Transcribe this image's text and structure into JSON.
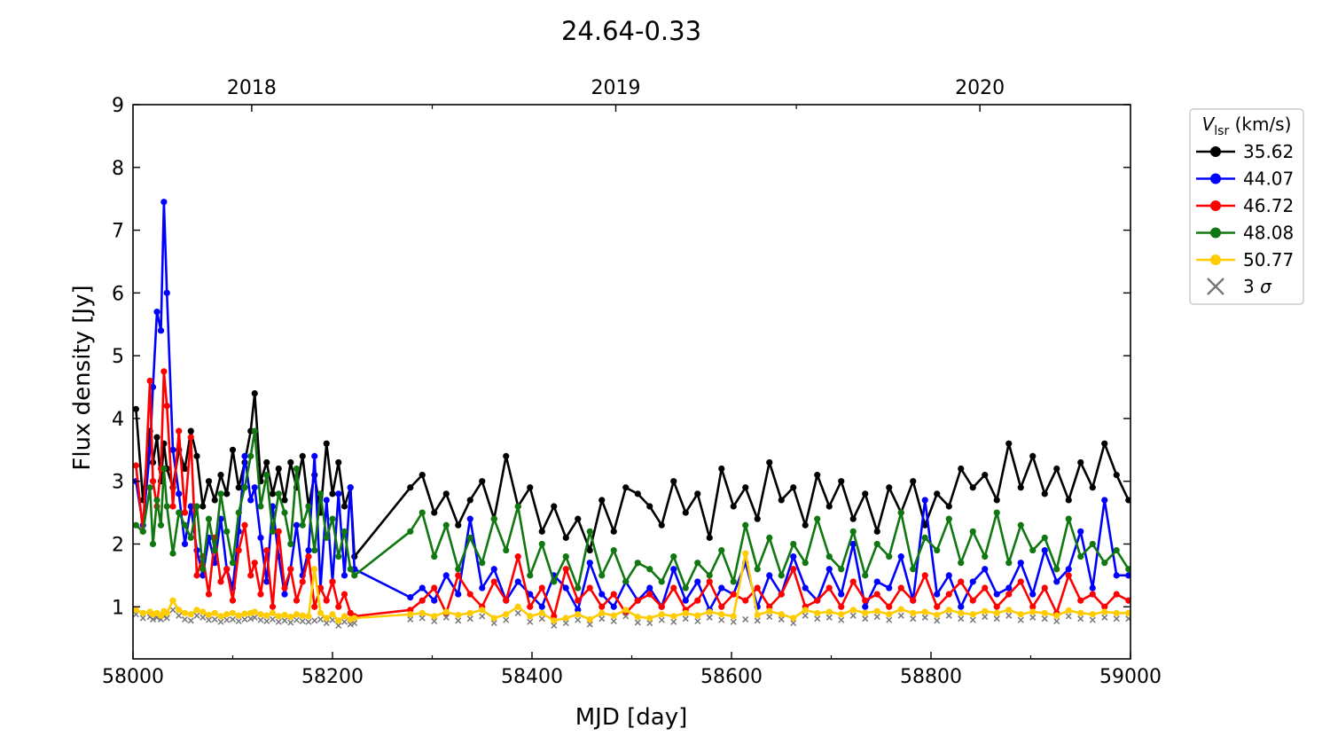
{
  "chart_data": {
    "type": "line",
    "title": "24.64-0.33",
    "xlabel": "MJD [day]",
    "ylabel": "Flux density [Jy]",
    "xlim": [
      58000,
      59000
    ],
    "ylim": [
      0.17,
      9
    ],
    "xticks": [
      58000,
      58200,
      58400,
      58600,
      58800,
      59000
    ],
    "yticks": [
      1,
      2,
      3,
      4,
      5,
      6,
      7,
      8,
      9
    ],
    "top_axis": {
      "ticks": [
        58119,
        58484,
        58849
      ],
      "labels": [
        "2018",
        "2019",
        "2020"
      ],
      "minor": [
        58300,
        58665
      ]
    },
    "grid": false,
    "legend": {
      "title": "V_lsr (km/s)",
      "title_main": "V",
      "title_sub": "lsr",
      "title_rest": " (km/s)",
      "placement": "outside-right-top"
    },
    "x": [
      58003,
      58010,
      58017,
      58020,
      58024,
      58028,
      58031,
      58034,
      58040,
      58046,
      58052,
      58058,
      58064,
      58070,
      58076,
      58082,
      58088,
      58094,
      58100,
      58106,
      58112,
      58118,
      58122,
      58128,
      58134,
      58140,
      58146,
      58152,
      58158,
      58164,
      58170,
      58176,
      58182,
      58188,
      58194,
      58200,
      58206,
      58212,
      58218,
      58222,
      58278,
      58290,
      58302,
      58314,
      58326,
      58338,
      58350,
      58362,
      58374,
      58386,
      58398,
      58410,
      58422,
      58434,
      58446,
      58458,
      58470,
      58482,
      58494,
      58506,
      58518,
      58530,
      58542,
      58554,
      58566,
      58578,
      58590,
      58602,
      58614,
      58626,
      58638,
      58650,
      58662,
      58674,
      58686,
      58698,
      58710,
      58722,
      58734,
      58746,
      58758,
      58770,
      58782,
      58794,
      58806,
      58818,
      58830,
      58842,
      58854,
      58866,
      58878,
      58890,
      58902,
      58914,
      58926,
      58938,
      58950,
      58962,
      58974,
      58986,
      58998
    ],
    "series": [
      {
        "name": "35.62",
        "color": "#000000",
        "values": [
          4.15,
          2.7,
          3.8,
          3.3,
          3.7,
          3.0,
          3.6,
          3.2,
          2.9,
          3.5,
          3.2,
          3.8,
          3.4,
          2.6,
          3.0,
          2.7,
          3.1,
          2.8,
          3.5,
          2.9,
          3.3,
          3.8,
          4.4,
          3.0,
          3.3,
          2.8,
          3.2,
          2.7,
          3.3,
          2.9,
          3.4,
          2.6,
          3.1,
          2.5,
          3.6,
          2.8,
          3.3,
          2.6,
          2.9,
          1.8,
          2.9,
          3.1,
          2.5,
          2.8,
          2.3,
          2.7,
          3.0,
          2.4,
          3.4,
          2.6,
          2.9,
          2.2,
          2.6,
          2.1,
          2.4,
          1.9,
          2.7,
          2.2,
          2.9,
          2.8,
          2.6,
          2.3,
          3.0,
          2.5,
          2.8,
          2.1,
          3.2,
          2.6,
          2.9,
          2.4,
          3.3,
          2.7,
          2.9,
          2.3,
          3.1,
          2.6,
          3.0,
          2.4,
          2.8,
          2.2,
          2.9,
          2.5,
          3.0,
          2.3,
          2.8,
          2.6,
          3.2,
          2.9,
          3.1,
          2.7,
          3.6,
          2.9,
          3.4,
          2.8,
          3.2,
          2.7,
          3.3,
          2.9,
          3.6,
          3.1,
          2.7
        ]
      },
      {
        "name": "44.07",
        "color": "#0000ff",
        "values": [
          3.0,
          2.3,
          3.5,
          4.5,
          5.7,
          5.4,
          7.45,
          6.0,
          3.5,
          2.8,
          2.0,
          2.6,
          1.9,
          1.5,
          2.1,
          1.7,
          2.4,
          1.6,
          1.3,
          2.2,
          3.4,
          2.7,
          2.9,
          2.1,
          1.4,
          2.6,
          1.8,
          1.2,
          1.6,
          2.3,
          1.5,
          1.9,
          3.4,
          1.3,
          2.7,
          1.4,
          2.8,
          1.5,
          2.9,
          1.6,
          1.15,
          1.3,
          1.1,
          1.5,
          1.2,
          2.4,
          1.3,
          1.6,
          1.1,
          1.4,
          1.2,
          1.0,
          1.5,
          1.3,
          0.95,
          1.7,
          1.2,
          1.0,
          1.4,
          1.1,
          1.3,
          1.0,
          1.6,
          1.1,
          1.4,
          0.95,
          1.3,
          1.2,
          1.7,
          1.0,
          1.5,
          1.2,
          1.8,
          1.3,
          1.1,
          1.6,
          1.2,
          2.0,
          1.0,
          1.4,
          1.3,
          1.8,
          1.1,
          2.7,
          1.2,
          1.5,
          1.0,
          1.4,
          1.6,
          1.2,
          1.3,
          1.7,
          1.2,
          1.9,
          1.4,
          1.6,
          2.2,
          1.3,
          2.7,
          1.5,
          1.5
        ]
      },
      {
        "name": "46.72",
        "color": "#ff0000",
        "values": [
          3.25,
          2.2,
          4.6,
          3.0,
          2.6,
          3.2,
          4.75,
          4.2,
          2.6,
          3.8,
          2.5,
          3.7,
          1.5,
          1.8,
          1.2,
          2.1,
          1.4,
          1.6,
          1.1,
          1.9,
          2.3,
          1.5,
          1.7,
          1.2,
          1.9,
          1.0,
          2.2,
          1.3,
          1.6,
          1.1,
          1.4,
          1.8,
          1.0,
          1.3,
          1.1,
          1.4,
          1.0,
          1.2,
          0.9,
          0.85,
          0.95,
          1.1,
          1.3,
          0.9,
          1.5,
          1.2,
          1.0,
          1.4,
          1.1,
          1.8,
          1.0,
          1.3,
          0.85,
          1.6,
          1.1,
          1.3,
          1.0,
          1.2,
          0.9,
          1.1,
          1.2,
          1.0,
          1.3,
          0.95,
          1.1,
          1.4,
          1.0,
          1.2,
          1.1,
          1.3,
          1.0,
          1.2,
          1.6,
          1.0,
          1.1,
          1.3,
          1.0,
          1.4,
          1.1,
          1.2,
          1.0,
          1.3,
          1.1,
          1.5,
          1.0,
          1.2,
          1.4,
          1.1,
          1.3,
          1.0,
          1.2,
          1.4,
          1.0,
          1.3,
          0.9,
          1.5,
          1.1,
          1.2,
          1.0,
          1.2,
          1.1
        ]
      },
      {
        "name": "48.08",
        "color": "#117711",
        "values": [
          2.3,
          2.2,
          2.9,
          2.0,
          2.7,
          2.3,
          3.2,
          2.6,
          1.85,
          2.5,
          2.3,
          2.1,
          2.6,
          1.6,
          2.4,
          1.9,
          2.8,
          2.2,
          1.7,
          2.5,
          2.9,
          3.4,
          3.8,
          2.6,
          3.1,
          2.2,
          2.8,
          2.5,
          2.0,
          3.2,
          2.3,
          2.6,
          1.9,
          2.8,
          2.1,
          2.4,
          1.8,
          2.2,
          1.6,
          1.5,
          2.2,
          2.5,
          1.8,
          2.3,
          1.6,
          2.1,
          1.7,
          2.4,
          1.9,
          2.6,
          1.5,
          2.0,
          1.4,
          1.8,
          1.3,
          2.2,
          1.5,
          1.9,
          1.4,
          1.7,
          1.6,
          1.4,
          1.8,
          1.3,
          1.7,
          1.5,
          1.9,
          1.4,
          2.3,
          1.6,
          2.1,
          1.5,
          2.0,
          1.7,
          2.4,
          1.8,
          1.6,
          2.2,
          1.5,
          2.0,
          1.8,
          2.5,
          1.6,
          2.1,
          1.9,
          2.4,
          1.7,
          2.2,
          1.8,
          2.5,
          1.7,
          2.3,
          1.9,
          2.1,
          1.6,
          2.4,
          1.8,
          2.0,
          1.7,
          1.9,
          1.6
        ]
      },
      {
        "name": "50.77",
        "color": "#ffcc00",
        "values": [
          0.95,
          0.9,
          0.92,
          0.88,
          0.9,
          0.86,
          0.93,
          0.9,
          1.1,
          0.95,
          0.9,
          0.88,
          0.95,
          0.92,
          0.87,
          0.9,
          0.85,
          0.88,
          0.9,
          0.86,
          0.89,
          0.9,
          0.92,
          0.88,
          0.86,
          0.9,
          0.85,
          0.87,
          0.84,
          0.88,
          0.86,
          0.85,
          1.6,
          0.9,
          0.82,
          0.88,
          0.78,
          0.85,
          0.8,
          0.82,
          0.88,
          0.9,
          0.85,
          0.92,
          0.87,
          0.9,
          0.95,
          0.82,
          0.88,
          1.0,
          0.85,
          0.9,
          0.78,
          0.82,
          0.88,
          0.8,
          0.9,
          0.86,
          0.95,
          0.84,
          0.82,
          0.88,
          0.85,
          0.9,
          0.86,
          0.92,
          0.88,
          0.85,
          1.85,
          0.87,
          0.93,
          0.88,
          0.82,
          0.95,
          0.9,
          0.92,
          0.88,
          0.95,
          0.9,
          0.93,
          0.88,
          0.96,
          0.9,
          0.92,
          0.87,
          0.95,
          0.9,
          0.88,
          0.93,
          0.9,
          0.95,
          0.88,
          0.92,
          0.9,
          0.86,
          0.94,
          0.9,
          0.88,
          0.92,
          0.9,
          0.9
        ]
      }
    ],
    "sigma": {
      "name": "3 σ",
      "label_main": "3 ",
      "label_sym": "σ",
      "color": "#777777",
      "marker": "x",
      "values": [
        0.88,
        0.82,
        0.84,
        0.8,
        0.83,
        0.8,
        0.85,
        0.82,
        0.95,
        0.86,
        0.8,
        0.78,
        0.86,
        0.83,
        0.79,
        0.8,
        0.76,
        0.79,
        0.8,
        0.77,
        0.8,
        0.81,
        0.83,
        0.79,
        0.77,
        0.8,
        0.76,
        0.78,
        0.75,
        0.79,
        0.77,
        0.76,
        0.78,
        0.8,
        0.74,
        0.79,
        0.7,
        0.76,
        0.72,
        0.74,
        0.8,
        0.82,
        0.77,
        0.83,
        0.78,
        0.81,
        0.85,
        0.74,
        0.79,
        0.9,
        0.76,
        0.81,
        0.7,
        0.74,
        0.79,
        0.72,
        0.81,
        0.77,
        0.85,
        0.75,
        0.74,
        0.79,
        0.76,
        0.81,
        0.77,
        0.83,
        0.79,
        0.76,
        0.8,
        0.78,
        0.84,
        0.8,
        0.74,
        0.86,
        0.81,
        0.83,
        0.79,
        0.86,
        0.81,
        0.84,
        0.79,
        0.86,
        0.81,
        0.83,
        0.78,
        0.86,
        0.81,
        0.79,
        0.84,
        0.81,
        0.86,
        0.79,
        0.83,
        0.81,
        0.77,
        0.85,
        0.81,
        0.79,
        0.83,
        0.81,
        0.81
      ]
    }
  }
}
